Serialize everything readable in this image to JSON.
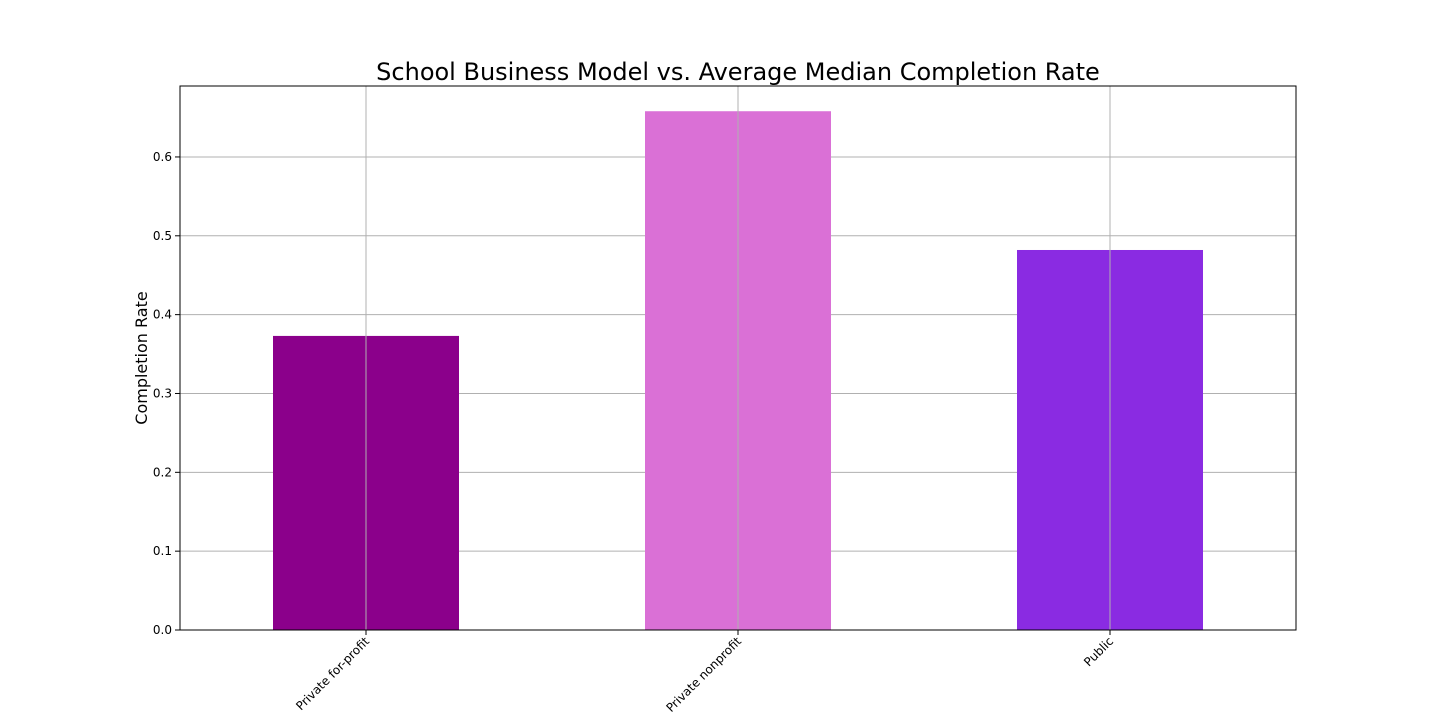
{
  "chart_data": {
    "type": "bar",
    "title": "School Business Model vs. Average Median Completion Rate",
    "xlabel": "",
    "ylabel": "Completion Rate",
    "categories": [
      "Private for-profit",
      "Private nonprofit",
      "Public"
    ],
    "values": [
      0.373,
      0.658,
      0.482
    ],
    "colors": [
      "#8b008b",
      "#da70d6",
      "#8a2be2"
    ],
    "yticks": [
      "0.0",
      "0.1",
      "0.2",
      "0.3",
      "0.4",
      "0.5",
      "0.6"
    ],
    "ylim": [
      0,
      0.69
    ],
    "grid": true,
    "legend": "none"
  }
}
